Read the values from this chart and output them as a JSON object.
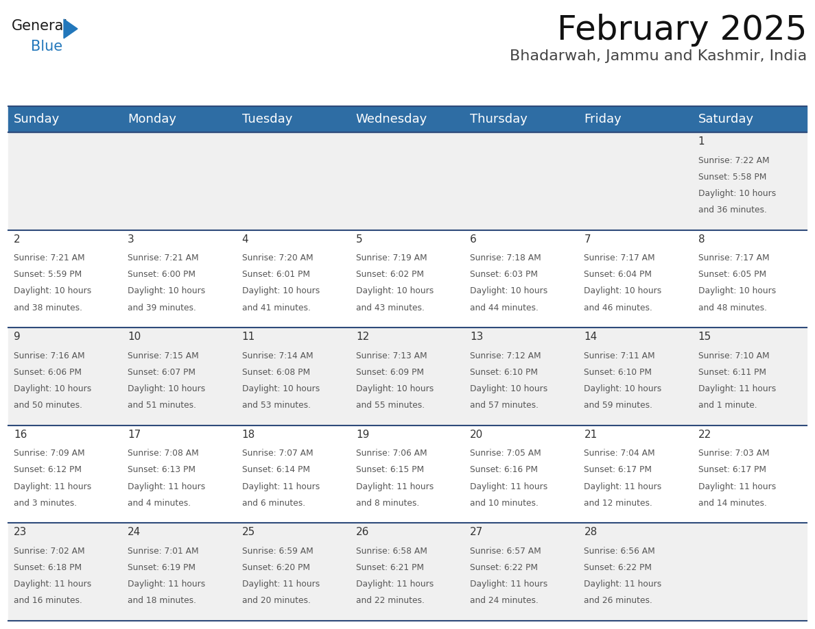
{
  "title": "February 2025",
  "subtitle": "Bhadarwah, Jammu and Kashmir, India",
  "header_color": "#2E6DA4",
  "header_text_color": "#FFFFFF",
  "bg_color": "#FFFFFF",
  "row_colors": [
    "#F0F0F0",
    "#FFFFFF",
    "#F0F0F0",
    "#FFFFFF",
    "#F0F0F0"
  ],
  "separator_color": "#2E4A7A",
  "day_headers": [
    "Sunday",
    "Monday",
    "Tuesday",
    "Wednesday",
    "Thursday",
    "Friday",
    "Saturday"
  ],
  "title_fontsize": 36,
  "subtitle_fontsize": 16,
  "header_fontsize": 13,
  "day_num_fontsize": 11,
  "cell_text_fontsize": 8.8,
  "logo_color_general": "#1a1a1a",
  "logo_color_blue": "#2277BB",
  "days": [
    {
      "date": 1,
      "row": 0,
      "col": 6,
      "sunrise": "7:22 AM",
      "sunset": "5:58 PM",
      "daylight_hours": 10,
      "daylight_minutes": 36,
      "dl_label": "and 36 minutes."
    },
    {
      "date": 2,
      "row": 1,
      "col": 0,
      "sunrise": "7:21 AM",
      "sunset": "5:59 PM",
      "daylight_hours": 10,
      "daylight_minutes": 38,
      "dl_label": "and 38 minutes."
    },
    {
      "date": 3,
      "row": 1,
      "col": 1,
      "sunrise": "7:21 AM",
      "sunset": "6:00 PM",
      "daylight_hours": 10,
      "daylight_minutes": 39,
      "dl_label": "and 39 minutes."
    },
    {
      "date": 4,
      "row": 1,
      "col": 2,
      "sunrise": "7:20 AM",
      "sunset": "6:01 PM",
      "daylight_hours": 10,
      "daylight_minutes": 41,
      "dl_label": "and 41 minutes."
    },
    {
      "date": 5,
      "row": 1,
      "col": 3,
      "sunrise": "7:19 AM",
      "sunset": "6:02 PM",
      "daylight_hours": 10,
      "daylight_minutes": 43,
      "dl_label": "and 43 minutes."
    },
    {
      "date": 6,
      "row": 1,
      "col": 4,
      "sunrise": "7:18 AM",
      "sunset": "6:03 PM",
      "daylight_hours": 10,
      "daylight_minutes": 44,
      "dl_label": "and 44 minutes."
    },
    {
      "date": 7,
      "row": 1,
      "col": 5,
      "sunrise": "7:17 AM",
      "sunset": "6:04 PM",
      "daylight_hours": 10,
      "daylight_minutes": 46,
      "dl_label": "and 46 minutes."
    },
    {
      "date": 8,
      "row": 1,
      "col": 6,
      "sunrise": "7:17 AM",
      "sunset": "6:05 PM",
      "daylight_hours": 10,
      "daylight_minutes": 48,
      "dl_label": "and 48 minutes."
    },
    {
      "date": 9,
      "row": 2,
      "col": 0,
      "sunrise": "7:16 AM",
      "sunset": "6:06 PM",
      "daylight_hours": 10,
      "daylight_minutes": 50,
      "dl_label": "and 50 minutes."
    },
    {
      "date": 10,
      "row": 2,
      "col": 1,
      "sunrise": "7:15 AM",
      "sunset": "6:07 PM",
      "daylight_hours": 10,
      "daylight_minutes": 51,
      "dl_label": "and 51 minutes."
    },
    {
      "date": 11,
      "row": 2,
      "col": 2,
      "sunrise": "7:14 AM",
      "sunset": "6:08 PM",
      "daylight_hours": 10,
      "daylight_minutes": 53,
      "dl_label": "and 53 minutes."
    },
    {
      "date": 12,
      "row": 2,
      "col": 3,
      "sunrise": "7:13 AM",
      "sunset": "6:09 PM",
      "daylight_hours": 10,
      "daylight_minutes": 55,
      "dl_label": "and 55 minutes."
    },
    {
      "date": 13,
      "row": 2,
      "col": 4,
      "sunrise": "7:12 AM",
      "sunset": "6:10 PM",
      "daylight_hours": 10,
      "daylight_minutes": 57,
      "dl_label": "and 57 minutes."
    },
    {
      "date": 14,
      "row": 2,
      "col": 5,
      "sunrise": "7:11 AM",
      "sunset": "6:10 PM",
      "daylight_hours": 10,
      "daylight_minutes": 59,
      "dl_label": "and 59 minutes."
    },
    {
      "date": 15,
      "row": 2,
      "col": 6,
      "sunrise": "7:10 AM",
      "sunset": "6:11 PM",
      "daylight_hours": 11,
      "daylight_minutes": 1,
      "dl_label": "and 1 minute."
    },
    {
      "date": 16,
      "row": 3,
      "col": 0,
      "sunrise": "7:09 AM",
      "sunset": "6:12 PM",
      "daylight_hours": 11,
      "daylight_minutes": 3,
      "dl_label": "and 3 minutes."
    },
    {
      "date": 17,
      "row": 3,
      "col": 1,
      "sunrise": "7:08 AM",
      "sunset": "6:13 PM",
      "daylight_hours": 11,
      "daylight_minutes": 4,
      "dl_label": "and 4 minutes."
    },
    {
      "date": 18,
      "row": 3,
      "col": 2,
      "sunrise": "7:07 AM",
      "sunset": "6:14 PM",
      "daylight_hours": 11,
      "daylight_minutes": 6,
      "dl_label": "and 6 minutes."
    },
    {
      "date": 19,
      "row": 3,
      "col": 3,
      "sunrise": "7:06 AM",
      "sunset": "6:15 PM",
      "daylight_hours": 11,
      "daylight_minutes": 8,
      "dl_label": "and 8 minutes."
    },
    {
      "date": 20,
      "row": 3,
      "col": 4,
      "sunrise": "7:05 AM",
      "sunset": "6:16 PM",
      "daylight_hours": 11,
      "daylight_minutes": 10,
      "dl_label": "and 10 minutes."
    },
    {
      "date": 21,
      "row": 3,
      "col": 5,
      "sunrise": "7:04 AM",
      "sunset": "6:17 PM",
      "daylight_hours": 11,
      "daylight_minutes": 12,
      "dl_label": "and 12 minutes."
    },
    {
      "date": 22,
      "row": 3,
      "col": 6,
      "sunrise": "7:03 AM",
      "sunset": "6:17 PM",
      "daylight_hours": 11,
      "daylight_minutes": 14,
      "dl_label": "and 14 minutes."
    },
    {
      "date": 23,
      "row": 4,
      "col": 0,
      "sunrise": "7:02 AM",
      "sunset": "6:18 PM",
      "daylight_hours": 11,
      "daylight_minutes": 16,
      "dl_label": "and 16 minutes."
    },
    {
      "date": 24,
      "row": 4,
      "col": 1,
      "sunrise": "7:01 AM",
      "sunset": "6:19 PM",
      "daylight_hours": 11,
      "daylight_minutes": 18,
      "dl_label": "and 18 minutes."
    },
    {
      "date": 25,
      "row": 4,
      "col": 2,
      "sunrise": "6:59 AM",
      "sunset": "6:20 PM",
      "daylight_hours": 11,
      "daylight_minutes": 20,
      "dl_label": "and 20 minutes."
    },
    {
      "date": 26,
      "row": 4,
      "col": 3,
      "sunrise": "6:58 AM",
      "sunset": "6:21 PM",
      "daylight_hours": 11,
      "daylight_minutes": 22,
      "dl_label": "and 22 minutes."
    },
    {
      "date": 27,
      "row": 4,
      "col": 4,
      "sunrise": "6:57 AM",
      "sunset": "6:22 PM",
      "daylight_hours": 11,
      "daylight_minutes": 24,
      "dl_label": "and 24 minutes."
    },
    {
      "date": 28,
      "row": 4,
      "col": 5,
      "sunrise": "6:56 AM",
      "sunset": "6:22 PM",
      "daylight_hours": 11,
      "daylight_minutes": 26,
      "dl_label": "and 26 minutes."
    }
  ]
}
